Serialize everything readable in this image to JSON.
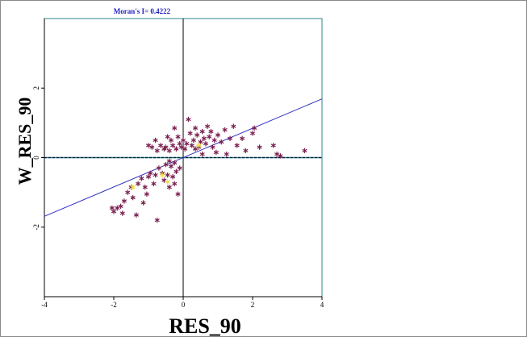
{
  "chart_data": {
    "type": "scatter",
    "title": "Moran's I= 0.4222",
    "xlabel": "RES_90",
    "ylabel": "W_RES_90",
    "xlim": [
      -4,
      4
    ],
    "ylim": [
      -4,
      4
    ],
    "xticks": [
      "-4",
      "-2",
      "0",
      "2",
      "4"
    ],
    "yticks": [
      "-2",
      "0",
      "2"
    ],
    "grid": false,
    "reference_lines": {
      "x": 0,
      "y": 0
    },
    "regression_line": {
      "slope": 0.4222,
      "intercept": 0
    },
    "colors": {
      "points": "#7a1f4f",
      "highlight_points": "#f0e040",
      "regression": "#3030c0",
      "zero_line_dashed": "#2a7a7a",
      "title": "#2020c0",
      "frame": "#2a8a8a"
    },
    "points": [
      [
        -2.05,
        -1.45
      ],
      [
        -2.0,
        -1.55
      ],
      [
        -1.9,
        -1.45
      ],
      [
        -1.8,
        -1.4
      ],
      [
        -1.75,
        -1.6
      ],
      [
        -1.7,
        -1.25
      ],
      [
        -1.6,
        -1.0
      ],
      [
        -1.5,
        -0.85
      ],
      [
        -1.45,
        -1.15
      ],
      [
        -1.35,
        -1.65
      ],
      [
        -1.3,
        -0.75
      ],
      [
        -1.2,
        -0.6
      ],
      [
        -1.15,
        -1.3
      ],
      [
        -1.1,
        -0.85
      ],
      [
        -1.05,
        -1.05
      ],
      [
        -1.0,
        -0.55
      ],
      [
        -0.95,
        -0.45
      ],
      [
        -0.85,
        -0.75
      ],
      [
        -0.8,
        -0.5
      ],
      [
        -0.75,
        -1.8
      ],
      [
        -0.7,
        -0.3
      ],
      [
        -0.6,
        -0.45
      ],
      [
        -0.55,
        -0.65
      ],
      [
        -0.5,
        -0.2
      ],
      [
        -0.45,
        -0.5
      ],
      [
        -0.4,
        -0.85
      ],
      [
        -0.35,
        -0.25
      ],
      [
        -0.3,
        -0.55
      ],
      [
        -0.25,
        -0.75
      ],
      [
        -0.2,
        -0.4
      ],
      [
        -0.15,
        -1.05
      ],
      [
        -0.1,
        -0.3
      ],
      [
        -0.25,
        -0.15
      ],
      [
        -0.4,
        -0.1
      ],
      [
        -1.0,
        0.35
      ],
      [
        -0.9,
        0.3
      ],
      [
        -0.8,
        0.5
      ],
      [
        -0.75,
        0.2
      ],
      [
        -0.65,
        0.35
      ],
      [
        -0.55,
        0.25
      ],
      [
        -0.5,
        0.3
      ],
      [
        -0.45,
        0.6
      ],
      [
        -0.4,
        0.2
      ],
      [
        -0.35,
        0.5
      ],
      [
        -0.3,
        0.35
      ],
      [
        -0.25,
        0.85
      ],
      [
        -0.2,
        0.25
      ],
      [
        -0.15,
        0.6
      ],
      [
        -0.1,
        0.4
      ],
      [
        -0.05,
        0.3
      ],
      [
        0.0,
        0.5
      ],
      [
        0.05,
        0.25
      ],
      [
        0.1,
        0.4
      ],
      [
        0.15,
        1.1
      ],
      [
        0.2,
        0.7
      ],
      [
        0.25,
        0.35
      ],
      [
        0.3,
        0.5
      ],
      [
        0.35,
        0.25
      ],
      [
        0.4,
        0.65
      ],
      [
        0.45,
        0.3
      ],
      [
        0.5,
        0.45
      ],
      [
        0.55,
        0.1
      ],
      [
        0.6,
        0.55
      ],
      [
        0.65,
        0.4
      ],
      [
        0.7,
        0.9
      ],
      [
        0.75,
        0.6
      ],
      [
        0.8,
        0.75
      ],
      [
        0.85,
        0.3
      ],
      [
        0.9,
        0.5
      ],
      [
        0.95,
        0.15
      ],
      [
        1.0,
        0.65
      ],
      [
        1.1,
        0.45
      ],
      [
        1.2,
        0.8
      ],
      [
        1.25,
        0.1
      ],
      [
        1.35,
        0.55
      ],
      [
        1.45,
        0.9
      ],
      [
        1.55,
        0.35
      ],
      [
        1.7,
        0.55
      ],
      [
        1.8,
        0.2
      ],
      [
        2.0,
        0.7
      ],
      [
        2.05,
        0.85
      ],
      [
        2.2,
        0.3
      ],
      [
        2.6,
        0.35
      ],
      [
        2.7,
        0.1
      ],
      [
        2.8,
        0.05
      ],
      [
        3.5,
        0.2
      ],
      [
        0.35,
        0.85
      ],
      [
        0.55,
        0.75
      ]
    ],
    "highlight_points": [
      [
        -1.45,
        -0.85
      ],
      [
        -0.6,
        -0.5
      ],
      [
        -0.45,
        -0.7
      ],
      [
        0.45,
        0.35
      ]
    ]
  }
}
